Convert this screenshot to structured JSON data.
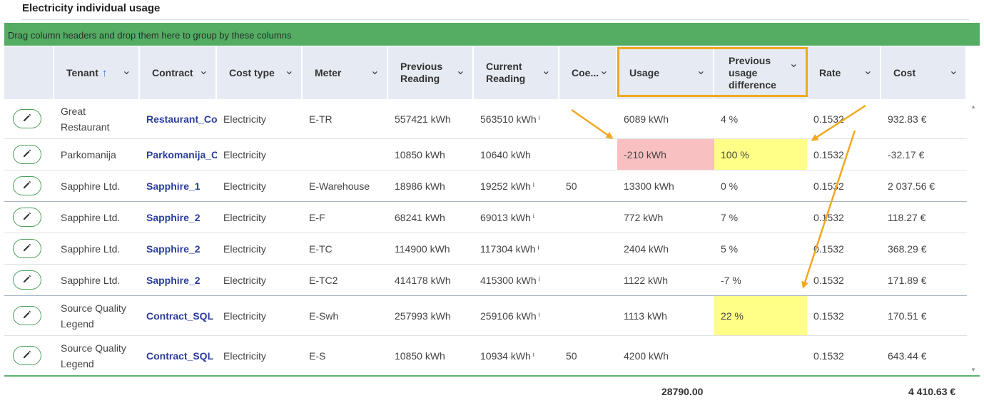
{
  "panel": {
    "title": "Electricity individual usage"
  },
  "group_bar": {
    "text": "Drag column headers and drop them here to group by these columns"
  },
  "columns": [
    {
      "key": "edit",
      "label": ""
    },
    {
      "key": "tenant",
      "label": "Tenant",
      "sort": "asc"
    },
    {
      "key": "contract",
      "label": "Contract"
    },
    {
      "key": "cost_type",
      "label": "Cost type"
    },
    {
      "key": "meter",
      "label": "Meter"
    },
    {
      "key": "prev",
      "label": "Previous Reading"
    },
    {
      "key": "curr",
      "label": "Current Reading"
    },
    {
      "key": "coe",
      "label": "Coe..."
    },
    {
      "key": "usage",
      "label": "Usage"
    },
    {
      "key": "pud",
      "label": "Previous usage difference"
    },
    {
      "key": "rate",
      "label": "Rate"
    },
    {
      "key": "cost",
      "label": "Cost"
    }
  ],
  "rows": [
    {
      "tenant": "Great Restaurant",
      "contract": "Restaurant_Cor",
      "cost_type": "Electricity",
      "meter": "E-TR",
      "prev": "557421 kWh",
      "curr": "563510 kWh",
      "curr_info": "i",
      "coe": "",
      "usage": "6089 kWh",
      "pud": "4 %",
      "rate": "0.1532",
      "cost": "932.83 €"
    },
    {
      "tenant": "Parkomanija",
      "contract": "Parkomanija_Co",
      "cost_type": "Electricity",
      "meter": "",
      "prev": "10850 kWh",
      "curr": "10640 kWh",
      "curr_info": "",
      "coe": "",
      "usage": "-210 kWh",
      "pud": "100 %",
      "rate": "0.1532",
      "cost": "-32.17 €",
      "usage_highlight": "red",
      "pud_highlight": "yellow"
    },
    {
      "tenant": "Sapphire Ltd.",
      "contract": "Sapphire_1",
      "cost_type": "Electricity",
      "meter": "E-Warehouse",
      "prev": "18986 kWh",
      "curr": "19252 kWh",
      "curr_info": "i",
      "coe": "50",
      "usage": "13300 kWh",
      "pud": "0 %",
      "rate": "0.1532",
      "cost": "2 037.56 €",
      "sep": true
    },
    {
      "tenant": "Sapphire Ltd.",
      "contract": "Sapphire_2",
      "cost_type": "Electricity",
      "meter": "E-F",
      "prev": "68241 kWh",
      "curr": "69013 kWh",
      "curr_info": "i",
      "coe": "",
      "usage": "772 kWh",
      "pud": "7 %",
      "rate": "0.1532",
      "cost": "118.27 €"
    },
    {
      "tenant": "Sapphire Ltd.",
      "contract": "Sapphire_2",
      "cost_type": "Electricity",
      "meter": "E-TC",
      "prev": "114900 kWh",
      "curr": "117304 kWh",
      "curr_info": "i",
      "coe": "",
      "usage": "2404 kWh",
      "pud": "5 %",
      "rate": "0.1532",
      "cost": "368.29 €"
    },
    {
      "tenant": "Sapphire Ltd.",
      "contract": "Sapphire_2",
      "cost_type": "Electricity",
      "meter": "E-TC2",
      "prev": "414178 kWh",
      "curr": "415300 kWh",
      "curr_info": "i",
      "coe": "",
      "usage": "1122 kWh",
      "pud": "-7 %",
      "rate": "0.1532",
      "cost": "171.89 €",
      "sep": true
    },
    {
      "tenant": "Source Quality Legend",
      "contract": "Contract_SQL",
      "cost_type": "Electricity",
      "meter": "E-Swh",
      "prev": "257993 kWh",
      "curr": "259106 kWh",
      "curr_info": "i",
      "coe": "",
      "usage": "1113 kWh",
      "pud": "22 %",
      "rate": "0.1532",
      "cost": "170.51 €",
      "pud_highlight": "yellow"
    },
    {
      "tenant": "Source Quality Legend",
      "contract": "Contract_SQL",
      "cost_type": "Electricity",
      "meter": "E-S",
      "prev": "10850 kWh",
      "curr": "10934 kWh",
      "curr_info": "i",
      "coe": "50",
      "usage": "4200 kWh",
      "pud": "",
      "rate": "0.1532",
      "cost": "643.44 €"
    }
  ],
  "footer": {
    "usage_total": "28790.00",
    "cost_total": "4 410.63 €"
  },
  "colors": {
    "group_bar": "#55ac63",
    "header_bg": "#e6ebf3",
    "link": "#2a3d9e",
    "red_cell": "#f8c0c0",
    "yellow_cell": "#ffff88",
    "annotation": "#f0a820"
  },
  "icons": {
    "edit": "pencil-icon",
    "menu": "chevron-down-icon",
    "sort": "arrow-up-icon"
  }
}
